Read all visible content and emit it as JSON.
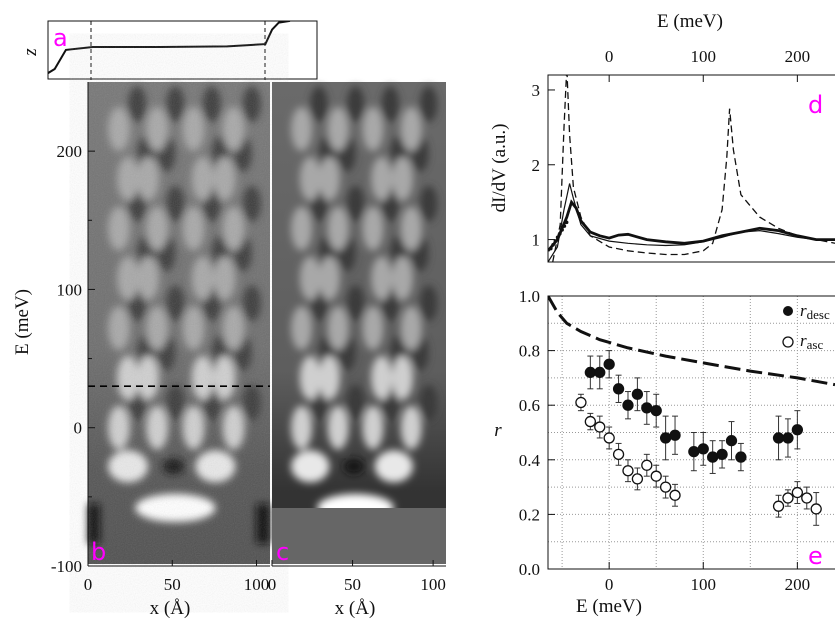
{
  "panel_labels": {
    "a": "a",
    "b": "b",
    "c": "c",
    "d": "d",
    "e": "e"
  },
  "colors": {
    "label": "#ff00ff",
    "ink": "#111111",
    "grid": "#999999"
  },
  "chart_data": [
    {
      "id": "a",
      "type": "line",
      "ylabel": "z",
      "x": [
        0,
        3,
        8,
        20,
        50,
        80,
        97,
        100,
        103,
        108
      ],
      "y": [
        0.05,
        0.12,
        0.45,
        0.5,
        0.5,
        0.51,
        0.55,
        0.8,
        0.92,
        0.95
      ]
    },
    {
      "id": "b",
      "type": "heatmap",
      "xlabel": "x (Å)",
      "ylabel": "E (meV)",
      "xticks": [
        "0",
        "50",
        "100"
      ],
      "yticks": [
        "-100",
        "0",
        "100",
        "200"
      ],
      "xlim": [
        0,
        108
      ],
      "ylim": [
        -100,
        250
      ],
      "dashed_line_E": 30,
      "dashed_x_markers": [
        3,
        104
      ]
    },
    {
      "id": "c",
      "type": "heatmap",
      "xlabel": "x (Å)",
      "xticks": [
        "0",
        "50",
        "100"
      ],
      "xlim": [
        0,
        108
      ],
      "ylim": [
        -100,
        250
      ]
    },
    {
      "id": "d",
      "type": "line",
      "xlabel": "E (meV)",
      "ylabel": "dI/dV (a.u.)",
      "xticks": [
        "0",
        "100",
        "200"
      ],
      "yticks": [
        "1",
        "2",
        "3"
      ],
      "xlim": [
        -65,
        240
      ],
      "ylim": [
        0.7,
        3.2
      ],
      "series": [
        {
          "style": "thick",
          "x": [
            -65,
            -55,
            -45,
            -40,
            -35,
            -30,
            -20,
            -10,
            0,
            10,
            20,
            40,
            60,
            80,
            100,
            120,
            140,
            160,
            180,
            200,
            220,
            240
          ],
          "y": [
            0.85,
            1.0,
            1.3,
            1.5,
            1.42,
            1.25,
            1.1,
            1.05,
            1.02,
            1.06,
            1.07,
            1.0,
            0.97,
            0.95,
            0.98,
            1.05,
            1.1,
            1.15,
            1.12,
            1.05,
            1.0,
            1.0
          ]
        },
        {
          "style": "thin",
          "x": [
            -65,
            -55,
            -48,
            -42,
            -38,
            -30,
            -20,
            0,
            20,
            40,
            60,
            80,
            100,
            120,
            140,
            160,
            180,
            200,
            220,
            240
          ],
          "y": [
            0.7,
            0.9,
            1.4,
            1.75,
            1.55,
            1.2,
            1.05,
            0.98,
            0.95,
            0.93,
            0.92,
            0.93,
            0.97,
            1.03,
            1.1,
            1.12,
            1.08,
            1.03,
            1.0,
            0.99
          ]
        },
        {
          "style": "dashed",
          "x": [
            -60,
            -52,
            -48,
            -45,
            -42,
            -38,
            -30,
            -20,
            0,
            20,
            40,
            60,
            80,
            100,
            110,
            120,
            125,
            128,
            132,
            140,
            160,
            180,
            200,
            240
          ],
          "y": [
            0.7,
            1.2,
            2.5,
            3.3,
            2.4,
            1.7,
            1.3,
            1.05,
            0.9,
            0.85,
            0.82,
            0.8,
            0.8,
            0.85,
            0.95,
            1.4,
            2.1,
            2.75,
            2.2,
            1.6,
            1.3,
            1.15,
            1.05,
            0.95
          ]
        }
      ]
    },
    {
      "id": "e",
      "type": "scatter",
      "xlabel": "E (meV)",
      "ylabel": "r",
      "xticks": [
        "0",
        "100",
        "200"
      ],
      "yticks": [
        "0.0",
        "0.2",
        "0.4",
        "0.6",
        "0.8",
        "1.0"
      ],
      "xlim": [
        -65,
        240
      ],
      "ylim": [
        0,
        1.0
      ],
      "grid": true,
      "legend": [
        "r_desc",
        "r_asc"
      ],
      "series": [
        {
          "name": "r_desc",
          "filled": true,
          "x": [
            -20,
            -10,
            0,
            10,
            20,
            30,
            40,
            50,
            60,
            70,
            90,
            100,
            110,
            120,
            130,
            140,
            180,
            190,
            200
          ],
          "y": [
            0.72,
            0.72,
            0.75,
            0.66,
            0.6,
            0.64,
            0.59,
            0.58,
            0.48,
            0.49,
            0.43,
            0.44,
            0.41,
            0.42,
            0.47,
            0.41,
            0.48,
            0.48,
            0.51
          ],
          "err": [
            0.06,
            0.06,
            0.05,
            0.05,
            0.05,
            0.06,
            0.06,
            0.06,
            0.08,
            0.07,
            0.07,
            0.06,
            0.06,
            0.05,
            0.07,
            0.05,
            0.08,
            0.07,
            0.07
          ]
        },
        {
          "name": "r_asc",
          "filled": false,
          "x": [
            -30,
            -20,
            -10,
            0,
            10,
            20,
            30,
            40,
            50,
            60,
            70,
            180,
            190,
            200,
            210,
            220
          ],
          "y": [
            0.61,
            0.54,
            0.52,
            0.48,
            0.42,
            0.36,
            0.33,
            0.38,
            0.34,
            0.3,
            0.27,
            0.23,
            0.26,
            0.28,
            0.26,
            0.22
          ],
          "err": [
            0.03,
            0.03,
            0.04,
            0.04,
            0.04,
            0.04,
            0.04,
            0.04,
            0.04,
            0.04,
            0.04,
            0.04,
            0.03,
            0.04,
            0.04,
            0.06
          ]
        },
        {
          "name": "",
          "style": "dashed",
          "x": [
            -65,
            -55,
            -45,
            -30,
            -10,
            20,
            60,
            100,
            150,
            200,
            240
          ],
          "y": [
            1.0,
            0.94,
            0.9,
            0.87,
            0.84,
            0.81,
            0.78,
            0.755,
            0.725,
            0.7,
            0.675
          ]
        }
      ]
    }
  ]
}
